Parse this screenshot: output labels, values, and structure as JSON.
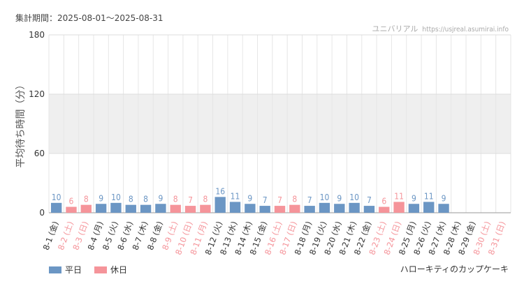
{
  "header": {
    "period": "集計期間：2025-08-01～2025-08-31",
    "site_name": "ユニバリアル",
    "site_url": "https://usjreal.asumirai.info"
  },
  "footer": {
    "attraction": "ハローキティのカップケーキ"
  },
  "colors": {
    "weekday": "#6b96c4",
    "holiday": "#f5949a",
    "band": "#efefef"
  },
  "chart_data": {
    "type": "bar",
    "ylabel": "平均待ち時間（分）",
    "ylim": [
      0,
      180
    ],
    "yticks": [
      0,
      60,
      120,
      180
    ],
    "grid": true,
    "legend": [
      {
        "name": "平日",
        "kind": "weekday"
      },
      {
        "name": "休日",
        "kind": "holiday"
      }
    ],
    "legend_position": "bottom-left",
    "categories": [
      "8-1 (金)",
      "8-2 (土)",
      "8-3 (日)",
      "8-4 (月)",
      "8-5 (火)",
      "8-6 (水)",
      "8-7 (木)",
      "8-8 (金)",
      "8-9 (土)",
      "8-10 (日)",
      "8-11 (月)",
      "8-12 (火)",
      "8-13 (水)",
      "8-14 (木)",
      "8-15 (金)",
      "8-16 (土)",
      "8-17 (日)",
      "8-18 (月)",
      "8-19 (火)",
      "8-20 (水)",
      "8-21 (木)",
      "8-22 (金)",
      "8-23 (土)",
      "8-24 (日)",
      "8-25 (月)",
      "8-26 (火)",
      "8-27 (水)",
      "8-28 (木)",
      "8-29 (金)",
      "8-30 (土)",
      "8-31 (日)"
    ],
    "holiday": [
      false,
      true,
      true,
      false,
      false,
      false,
      false,
      false,
      true,
      true,
      true,
      false,
      false,
      false,
      false,
      true,
      true,
      false,
      false,
      false,
      false,
      false,
      true,
      true,
      false,
      false,
      false,
      false,
      false,
      true,
      true
    ],
    "values": [
      10,
      6,
      8,
      9,
      10,
      8,
      8,
      9,
      8,
      7,
      8,
      16,
      11,
      9,
      7,
      7,
      8,
      7,
      10,
      9,
      10,
      7,
      6,
      11,
      9,
      11,
      9,
      null,
      null,
      null,
      null
    ]
  }
}
